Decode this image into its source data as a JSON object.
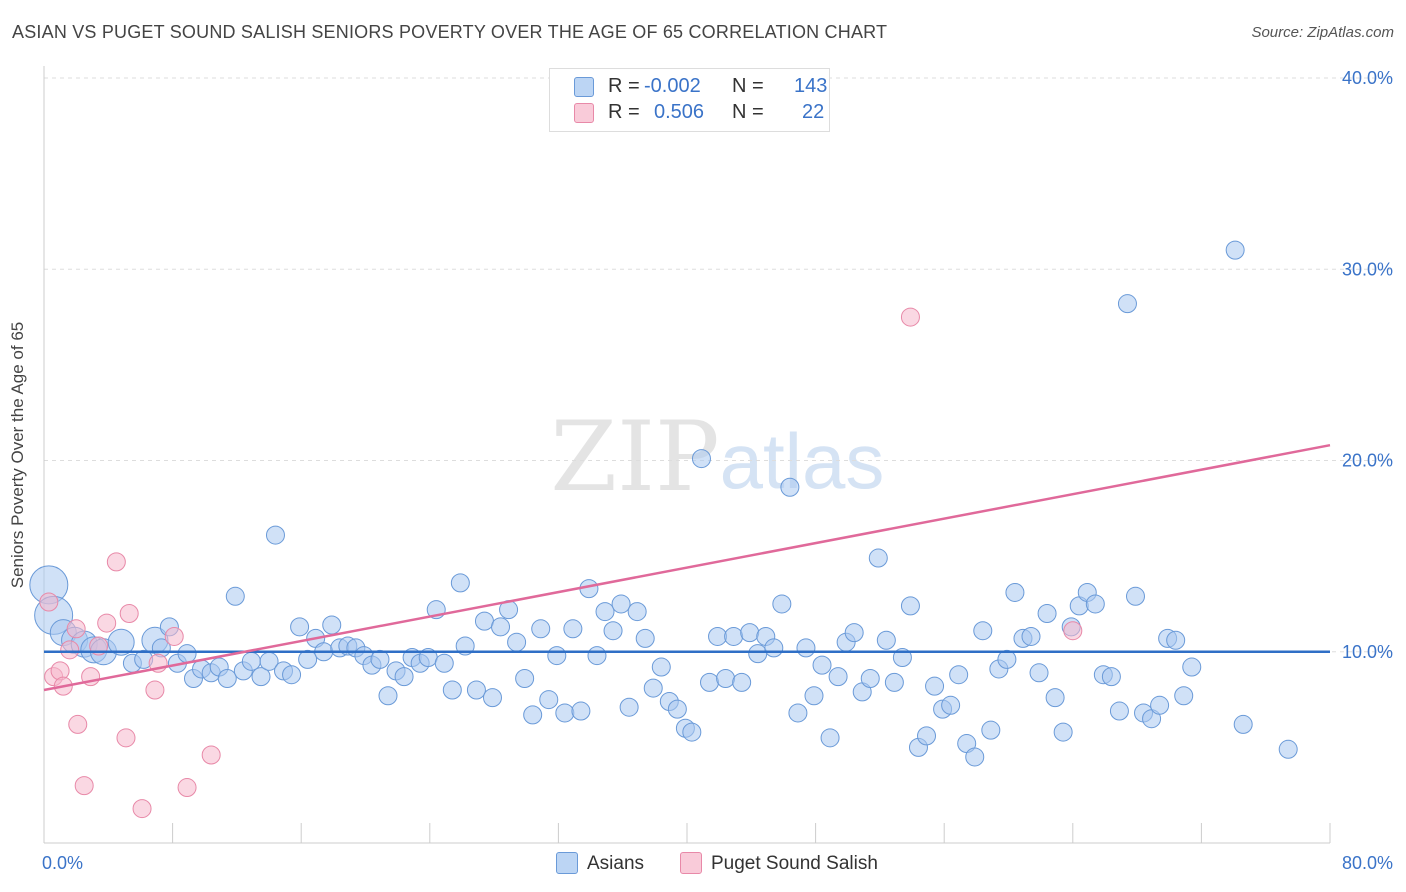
{
  "header": {
    "title": "ASIAN VS PUGET SOUND SALISH SENIORS POVERTY OVER THE AGE OF 65 CORRELATION CHART",
    "source": "Source: ZipAtlas.com"
  },
  "watermark": {
    "zip": "ZIP",
    "atlas": "atlas"
  },
  "legend": {
    "rows": [
      {
        "r_label": "R =",
        "r_value": "-0.002",
        "n_label": "N =",
        "n_value": "143"
      },
      {
        "r_label": "R =",
        "r_value": "0.506",
        "n_label": "N =",
        "n_value": "22"
      }
    ]
  },
  "colors": {
    "asian_fill": "#a9c9f0",
    "asian_stroke": "#6a9ad8",
    "asian_line": "#2f6fc6",
    "salish_fill": "#f6b8cc",
    "salish_stroke": "#e889a8",
    "salish_line": "#e0699a",
    "tick_label": "#3a73c8",
    "grid": "#dddddd"
  },
  "chart_data": {
    "type": "scatter",
    "ylabel": "Seniors Poverty Over the Age of 65",
    "xlim": [
      0,
      80
    ],
    "ylim": [
      0,
      40
    ],
    "x_tick_labels": [
      {
        "value": 0,
        "label": "0.0%"
      },
      {
        "value": 80,
        "label": "80.0%"
      }
    ],
    "y_tick_labels": [
      {
        "value": 10,
        "label": "10.0%"
      },
      {
        "value": 20,
        "label": "20.0%"
      },
      {
        "value": 30,
        "label": "30.0%"
      },
      {
        "value": 40,
        "label": "40.0%"
      }
    ],
    "grid": true,
    "legend_position": "top-center",
    "series": [
      {
        "name": "Asians",
        "trend": {
          "x": [
            0,
            80
          ],
          "y": [
            10.0,
            10.0
          ]
        },
        "points": [
          {
            "x": 0.3,
            "y": 13.5,
            "s": 3
          },
          {
            "x": 0.6,
            "y": 11.9,
            "s": 3
          },
          {
            "x": 1.2,
            "y": 11.0,
            "s": 2
          },
          {
            "x": 1.9,
            "y": 10.6,
            "s": 2
          },
          {
            "x": 2.5,
            "y": 10.4,
            "s": 2
          },
          {
            "x": 3.1,
            "y": 10.1,
            "s": 2
          },
          {
            "x": 3.7,
            "y": 10.0,
            "s": 2
          },
          {
            "x": 4.8,
            "y": 10.5,
            "s": 2
          },
          {
            "x": 5.5,
            "y": 9.4,
            "s": 1
          },
          {
            "x": 6.2,
            "y": 9.6,
            "s": 1
          },
          {
            "x": 6.9,
            "y": 10.6,
            "s": 2
          },
          {
            "x": 7.3,
            "y": 10.2,
            "s": 1
          },
          {
            "x": 7.8,
            "y": 11.3,
            "s": 1
          },
          {
            "x": 8.3,
            "y": 9.4,
            "s": 1
          },
          {
            "x": 8.9,
            "y": 9.9,
            "s": 1
          },
          {
            "x": 9.3,
            "y": 8.6,
            "s": 1
          },
          {
            "x": 9.8,
            "y": 9.1,
            "s": 1
          },
          {
            "x": 10.4,
            "y": 8.9,
            "s": 1
          },
          {
            "x": 10.9,
            "y": 9.2,
            "s": 1
          },
          {
            "x": 11.4,
            "y": 8.6,
            "s": 1
          },
          {
            "x": 11.9,
            "y": 12.9,
            "s": 1
          },
          {
            "x": 12.4,
            "y": 9.0,
            "s": 1
          },
          {
            "x": 12.9,
            "y": 9.5,
            "s": 1
          },
          {
            "x": 13.5,
            "y": 8.7,
            "s": 1
          },
          {
            "x": 14.0,
            "y": 9.5,
            "s": 1
          },
          {
            "x": 14.4,
            "y": 16.1,
            "s": 1
          },
          {
            "x": 14.9,
            "y": 9.0,
            "s": 1
          },
          {
            "x": 15.4,
            "y": 8.8,
            "s": 1
          },
          {
            "x": 15.9,
            "y": 11.3,
            "s": 1
          },
          {
            "x": 16.4,
            "y": 9.6,
            "s": 1
          },
          {
            "x": 16.9,
            "y": 10.7,
            "s": 1
          },
          {
            "x": 17.4,
            "y": 10.0,
            "s": 1
          },
          {
            "x": 17.9,
            "y": 11.4,
            "s": 1
          },
          {
            "x": 18.4,
            "y": 10.2,
            "s": 1
          },
          {
            "x": 18.9,
            "y": 10.3,
            "s": 1
          },
          {
            "x": 19.4,
            "y": 10.2,
            "s": 1
          },
          {
            "x": 19.9,
            "y": 9.8,
            "s": 1
          },
          {
            "x": 20.4,
            "y": 9.3,
            "s": 1
          },
          {
            "x": 20.9,
            "y": 9.6,
            "s": 1
          },
          {
            "x": 21.4,
            "y": 7.7,
            "s": 1
          },
          {
            "x": 21.9,
            "y": 9.0,
            "s": 1
          },
          {
            "x": 22.4,
            "y": 8.7,
            "s": 1
          },
          {
            "x": 22.9,
            "y": 9.7,
            "s": 1
          },
          {
            "x": 23.4,
            "y": 9.4,
            "s": 1
          },
          {
            "x": 23.9,
            "y": 9.7,
            "s": 1
          },
          {
            "x": 24.4,
            "y": 12.2,
            "s": 1
          },
          {
            "x": 24.9,
            "y": 9.4,
            "s": 1
          },
          {
            "x": 25.4,
            "y": 8.0,
            "s": 1
          },
          {
            "x": 25.9,
            "y": 13.6,
            "s": 1
          },
          {
            "x": 26.2,
            "y": 10.3,
            "s": 1
          },
          {
            "x": 26.9,
            "y": 8.0,
            "s": 1
          },
          {
            "x": 27.4,
            "y": 11.6,
            "s": 1
          },
          {
            "x": 27.9,
            "y": 7.6,
            "s": 1
          },
          {
            "x": 28.4,
            "y": 11.3,
            "s": 1
          },
          {
            "x": 28.9,
            "y": 12.2,
            "s": 1
          },
          {
            "x": 29.4,
            "y": 10.5,
            "s": 1
          },
          {
            "x": 29.9,
            "y": 8.6,
            "s": 1
          },
          {
            "x": 30.4,
            "y": 6.7,
            "s": 1
          },
          {
            "x": 30.9,
            "y": 11.2,
            "s": 1
          },
          {
            "x": 31.4,
            "y": 7.5,
            "s": 1
          },
          {
            "x": 31.9,
            "y": 9.8,
            "s": 1
          },
          {
            "x": 32.4,
            "y": 6.8,
            "s": 1
          },
          {
            "x": 32.9,
            "y": 11.2,
            "s": 1
          },
          {
            "x": 33.4,
            "y": 6.9,
            "s": 1
          },
          {
            "x": 33.9,
            "y": 13.3,
            "s": 1
          },
          {
            "x": 34.4,
            "y": 9.8,
            "s": 1
          },
          {
            "x": 34.9,
            "y": 12.1,
            "s": 1
          },
          {
            "x": 35.4,
            "y": 11.1,
            "s": 1
          },
          {
            "x": 35.9,
            "y": 12.5,
            "s": 1
          },
          {
            "x": 36.4,
            "y": 7.1,
            "s": 1
          },
          {
            "x": 36.9,
            "y": 12.1,
            "s": 1
          },
          {
            "x": 37.4,
            "y": 10.7,
            "s": 1
          },
          {
            "x": 37.9,
            "y": 8.1,
            "s": 1
          },
          {
            "x": 38.4,
            "y": 9.2,
            "s": 1
          },
          {
            "x": 38.9,
            "y": 7.4,
            "s": 1
          },
          {
            "x": 39.4,
            "y": 7.0,
            "s": 1
          },
          {
            "x": 39.9,
            "y": 6.0,
            "s": 1
          },
          {
            "x": 40.3,
            "y": 5.8,
            "s": 1
          },
          {
            "x": 40.9,
            "y": 20.1,
            "s": 1
          },
          {
            "x": 41.4,
            "y": 8.4,
            "s": 1
          },
          {
            "x": 41.9,
            "y": 10.8,
            "s": 1
          },
          {
            "x": 42.4,
            "y": 8.6,
            "s": 1
          },
          {
            "x": 42.9,
            "y": 10.8,
            "s": 1
          },
          {
            "x": 43.4,
            "y": 8.4,
            "s": 1
          },
          {
            "x": 43.9,
            "y": 11.0,
            "s": 1
          },
          {
            "x": 44.4,
            "y": 9.9,
            "s": 1
          },
          {
            "x": 44.9,
            "y": 10.8,
            "s": 1
          },
          {
            "x": 45.4,
            "y": 10.2,
            "s": 1
          },
          {
            "x": 45.9,
            "y": 12.5,
            "s": 1
          },
          {
            "x": 46.4,
            "y": 18.6,
            "s": 1
          },
          {
            "x": 46.9,
            "y": 6.8,
            "s": 1
          },
          {
            "x": 47.4,
            "y": 10.2,
            "s": 1
          },
          {
            "x": 47.9,
            "y": 7.7,
            "s": 1
          },
          {
            "x": 48.4,
            "y": 9.3,
            "s": 1
          },
          {
            "x": 48.9,
            "y": 5.5,
            "s": 1
          },
          {
            "x": 49.4,
            "y": 8.7,
            "s": 1
          },
          {
            "x": 49.9,
            "y": 10.5,
            "s": 1
          },
          {
            "x": 50.4,
            "y": 11.0,
            "s": 1
          },
          {
            "x": 50.9,
            "y": 7.9,
            "s": 1
          },
          {
            "x": 51.4,
            "y": 8.6,
            "s": 1
          },
          {
            "x": 51.9,
            "y": 14.9,
            "s": 1
          },
          {
            "x": 52.4,
            "y": 10.6,
            "s": 1
          },
          {
            "x": 52.9,
            "y": 8.4,
            "s": 1
          },
          {
            "x": 53.4,
            "y": 9.7,
            "s": 1
          },
          {
            "x": 53.9,
            "y": 12.4,
            "s": 1
          },
          {
            "x": 54.4,
            "y": 5.0,
            "s": 1
          },
          {
            "x": 54.9,
            "y": 5.6,
            "s": 1
          },
          {
            "x": 55.4,
            "y": 8.2,
            "s": 1
          },
          {
            "x": 55.9,
            "y": 7.0,
            "s": 1
          },
          {
            "x": 56.4,
            "y": 7.2,
            "s": 1
          },
          {
            "x": 56.9,
            "y": 8.8,
            "s": 1
          },
          {
            "x": 57.4,
            "y": 5.2,
            "s": 1
          },
          {
            "x": 57.9,
            "y": 4.5,
            "s": 1
          },
          {
            "x": 58.4,
            "y": 11.1,
            "s": 1
          },
          {
            "x": 58.9,
            "y": 5.9,
            "s": 1
          },
          {
            "x": 59.4,
            "y": 9.1,
            "s": 1
          },
          {
            "x": 59.9,
            "y": 9.6,
            "s": 1
          },
          {
            "x": 60.4,
            "y": 13.1,
            "s": 1
          },
          {
            "x": 60.9,
            "y": 10.7,
            "s": 1
          },
          {
            "x": 61.4,
            "y": 10.8,
            "s": 1
          },
          {
            "x": 61.9,
            "y": 8.9,
            "s": 1
          },
          {
            "x": 62.4,
            "y": 12.0,
            "s": 1
          },
          {
            "x": 62.9,
            "y": 7.6,
            "s": 1
          },
          {
            "x": 63.4,
            "y": 5.8,
            "s": 1
          },
          {
            "x": 63.9,
            "y": 11.3,
            "s": 1
          },
          {
            "x": 64.4,
            "y": 12.4,
            "s": 1
          },
          {
            "x": 64.9,
            "y": 13.1,
            "s": 1
          },
          {
            "x": 65.4,
            "y": 12.5,
            "s": 1
          },
          {
            "x": 65.9,
            "y": 8.8,
            "s": 1
          },
          {
            "x": 66.4,
            "y": 8.7,
            "s": 1
          },
          {
            "x": 66.9,
            "y": 6.9,
            "s": 1
          },
          {
            "x": 67.4,
            "y": 28.2,
            "s": 1
          },
          {
            "x": 67.9,
            "y": 12.9,
            "s": 1
          },
          {
            "x": 68.4,
            "y": 6.8,
            "s": 1
          },
          {
            "x": 68.9,
            "y": 6.5,
            "s": 1
          },
          {
            "x": 69.4,
            "y": 7.2,
            "s": 1
          },
          {
            "x": 69.9,
            "y": 10.7,
            "s": 1
          },
          {
            "x": 70.4,
            "y": 10.6,
            "s": 1
          },
          {
            "x": 70.9,
            "y": 7.7,
            "s": 1
          },
          {
            "x": 71.4,
            "y": 9.2,
            "s": 1
          },
          {
            "x": 74.1,
            "y": 31.0,
            "s": 1
          },
          {
            "x": 74.6,
            "y": 6.2,
            "s": 1
          },
          {
            "x": 77.4,
            "y": 4.9,
            "s": 1
          }
        ]
      },
      {
        "name": "Puget Sound Salish",
        "trend": {
          "x": [
            0,
            80
          ],
          "y": [
            8.0,
            20.8
          ]
        },
        "points": [
          {
            "x": 0.3,
            "y": 12.6,
            "s": 1
          },
          {
            "x": 0.6,
            "y": 8.7,
            "s": 1
          },
          {
            "x": 1.0,
            "y": 9.0,
            "s": 1
          },
          {
            "x": 1.2,
            "y": 8.2,
            "s": 1
          },
          {
            "x": 1.6,
            "y": 10.1,
            "s": 1
          },
          {
            "x": 2.0,
            "y": 11.2,
            "s": 1
          },
          {
            "x": 2.1,
            "y": 6.2,
            "s": 1
          },
          {
            "x": 2.5,
            "y": 3.0,
            "s": 1
          },
          {
            "x": 2.9,
            "y": 8.7,
            "s": 1
          },
          {
            "x": 3.4,
            "y": 10.3,
            "s": 1
          },
          {
            "x": 3.9,
            "y": 11.5,
            "s": 1
          },
          {
            "x": 4.5,
            "y": 14.7,
            "s": 1
          },
          {
            "x": 5.1,
            "y": 5.5,
            "s": 1
          },
          {
            "x": 5.3,
            "y": 12.0,
            "s": 1
          },
          {
            "x": 6.1,
            "y": 1.8,
            "s": 1
          },
          {
            "x": 6.9,
            "y": 8.0,
            "s": 1
          },
          {
            "x": 7.1,
            "y": 9.4,
            "s": 1
          },
          {
            "x": 8.1,
            "y": 10.8,
            "s": 1
          },
          {
            "x": 8.9,
            "y": 2.9,
            "s": 1
          },
          {
            "x": 10.4,
            "y": 4.6,
            "s": 1
          },
          {
            "x": 53.9,
            "y": 27.5,
            "s": 1
          },
          {
            "x": 64.0,
            "y": 11.1,
            "s": 1
          }
        ]
      }
    ]
  },
  "bottom_legend": {
    "items": [
      "Asians",
      "Puget Sound Salish"
    ]
  }
}
